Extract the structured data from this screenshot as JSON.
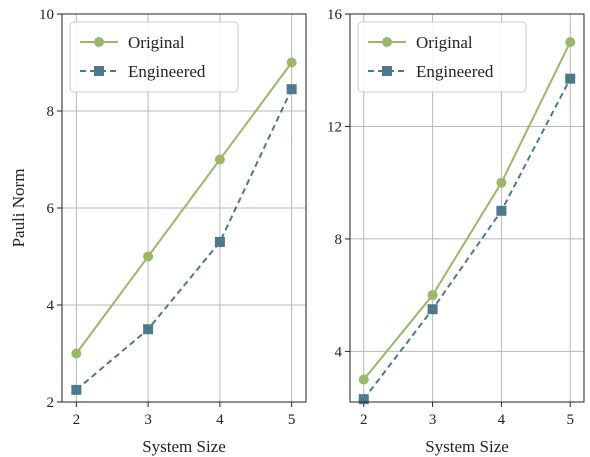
{
  "colors": {
    "original": "#9bb86a",
    "engineered": "#4d7a8a"
  },
  "chart_data": [
    {
      "type": "line",
      "xlabel": "System Size",
      "ylabel": "Pauli Norm",
      "xlim": [
        1.8,
        5.2
      ],
      "ylim": [
        2,
        10
      ],
      "xticks": [
        2,
        3,
        4,
        5
      ],
      "yticks": [
        2,
        4,
        6,
        8,
        10
      ],
      "grid": true,
      "legend_position": "top-left",
      "x": [
        2,
        3,
        4,
        5
      ],
      "series": [
        {
          "name": "Original",
          "values": [
            3.0,
            5.0,
            7.0,
            9.0
          ],
          "style": "solid",
          "marker": "circle",
          "color": "#9bb86a"
        },
        {
          "name": "Engineered",
          "values": [
            2.25,
            3.5,
            5.3,
            8.45
          ],
          "style": "dashed",
          "marker": "square",
          "color": "#4d7a8a"
        }
      ]
    },
    {
      "type": "line",
      "xlabel": "System Size",
      "ylabel": "",
      "xlim": [
        1.8,
        5.2
      ],
      "ylim": [
        2.2,
        16
      ],
      "xticks": [
        2,
        3,
        4,
        5
      ],
      "yticks": [
        4,
        8,
        12,
        16
      ],
      "grid": true,
      "legend_position": "top-left",
      "x": [
        2,
        3,
        4,
        5
      ],
      "series": [
        {
          "name": "Original",
          "values": [
            3.0,
            6.0,
            10.0,
            15.0
          ],
          "style": "solid",
          "marker": "circle",
          "color": "#9bb86a"
        },
        {
          "name": "Engineered",
          "values": [
            2.3,
            5.5,
            9.0,
            13.7
          ],
          "style": "dashed",
          "marker": "square",
          "color": "#4d7a8a"
        }
      ]
    }
  ]
}
